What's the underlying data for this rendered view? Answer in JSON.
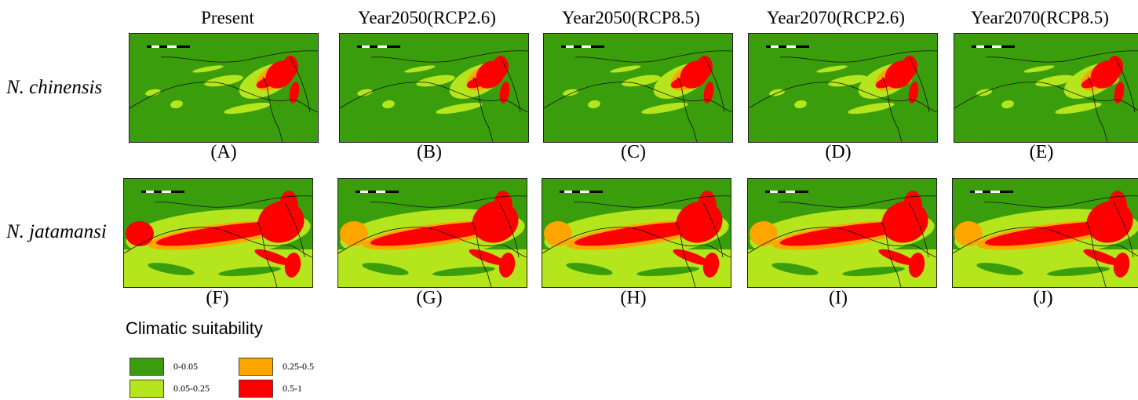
{
  "columns": [
    "Present",
    "Year2050(RCP2.6)",
    "Year2050(RCP8.5)",
    "Year2070(RCP2.6)",
    "Year2070(RCP8.5)"
  ],
  "rows": [
    {
      "species": "N. chinensis",
      "panels": [
        "(A)",
        "(B)",
        "(C)",
        "(D)",
        "(E)"
      ],
      "spread": "narrow"
    },
    {
      "species": "N. jatamansi",
      "panels": [
        "(F)",
        "(G)",
        "(H)",
        "(I)",
        "(J)"
      ],
      "spread": "wide"
    }
  ],
  "legend": {
    "title": "Climatic suitability",
    "items": [
      {
        "label": "0-0.05",
        "color": "#3a9e0c"
      },
      {
        "label": "0.25-0.5",
        "color": "#ffa500"
      },
      {
        "label": "0.05-0.25",
        "color": "#b5e61d"
      },
      {
        "label": "0.5-1",
        "color": "#ff0000"
      }
    ]
  },
  "colors": {
    "very_low": "#3a9e0c",
    "low": "#b5e61d",
    "moderate": "#ffa500",
    "high": "#ff0000",
    "boundary": "#111111"
  }
}
